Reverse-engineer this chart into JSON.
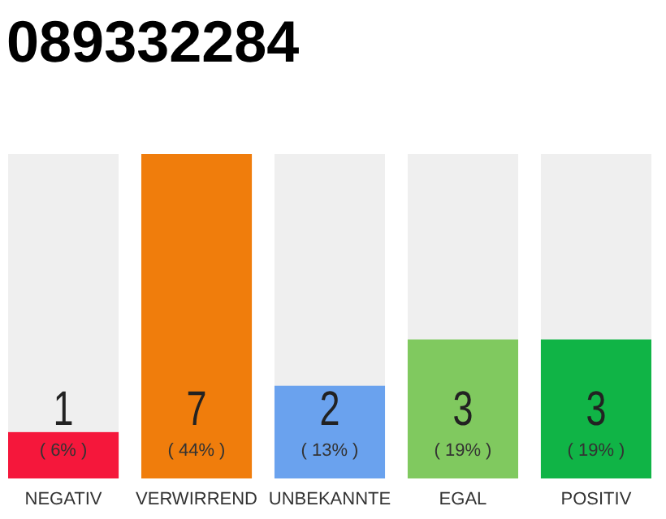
{
  "chart_data": {
    "type": "bar",
    "title": "089332284",
    "categories": [
      "NEGATIV",
      "VERWIRREND",
      "UNBEKANNTE",
      "EGAL",
      "POSITIV"
    ],
    "values": [
      1,
      7,
      2,
      3,
      3
    ],
    "colors": [
      "#f5173b",
      "#f07d0c",
      "#6aa2ee",
      "#80c95f",
      "#10b446"
    ],
    "data_labels": true,
    "annotations": [
      "( 6% )",
      "( 44% )",
      "( 13% )",
      "( 19% )",
      "( 19% )"
    ]
  }
}
